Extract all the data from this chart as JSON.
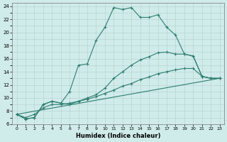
{
  "xlabel": "Humidex (Indice chaleur)",
  "xlim": [
    -0.5,
    23.5
  ],
  "ylim": [
    6,
    24.5
  ],
  "yticks": [
    6,
    8,
    10,
    12,
    14,
    16,
    18,
    20,
    22,
    24
  ],
  "xticks": [
    0,
    1,
    2,
    3,
    4,
    5,
    6,
    7,
    8,
    9,
    10,
    11,
    12,
    13,
    14,
    15,
    16,
    17,
    18,
    19,
    20,
    21,
    22,
    23
  ],
  "background_color": "#d0ecea",
  "plot_bg_color": "#d0ecea",
  "grid_color": "#b0cece",
  "line_color": "#2e7d6e",
  "line1_x": [
    0,
    1,
    2,
    3,
    4,
    5,
    6,
    7,
    8,
    9,
    10,
    11,
    12,
    13,
    14,
    15,
    16,
    17,
    18,
    19,
    20,
    21,
    22,
    23
  ],
  "line1_y": [
    7.5,
    6.8,
    7.0,
    9.0,
    9.5,
    9.2,
    11.0,
    15.0,
    15.2,
    18.8,
    20.8,
    23.8,
    23.5,
    23.8,
    22.3,
    22.3,
    22.7,
    20.8,
    19.6,
    16.7,
    16.4,
    13.3,
    13.0,
    13.0
  ],
  "line2_x": [
    0,
    1,
    2,
    3,
    4,
    5,
    6,
    7,
    8,
    9,
    10,
    11,
    12,
    13,
    14,
    15,
    16,
    17,
    18,
    19,
    20,
    21,
    22,
    23
  ],
  "line2_y": [
    7.5,
    6.8,
    7.0,
    9.0,
    9.5,
    9.2,
    9.0,
    9.5,
    10.0,
    10.5,
    11.5,
    13.0,
    14.0,
    15.0,
    15.8,
    16.3,
    16.9,
    17.0,
    16.7,
    16.7,
    16.4,
    13.3,
    13.0,
    13.0
  ],
  "line3_x": [
    0,
    1,
    2,
    3,
    4,
    5,
    6,
    7,
    8,
    9,
    10,
    11,
    12,
    13,
    14,
    15,
    16,
    17,
    18,
    19,
    20,
    21,
    22,
    23
  ],
  "line3_y": [
    7.5,
    7.0,
    7.5,
    8.5,
    9.0,
    9.0,
    9.2,
    9.5,
    9.8,
    10.2,
    10.7,
    11.2,
    11.8,
    12.2,
    12.8,
    13.2,
    13.7,
    14.0,
    14.3,
    14.5,
    14.5,
    13.3,
    13.0,
    13.0
  ],
  "line4_x": [
    0,
    23
  ],
  "line4_y": [
    7.5,
    13.0
  ]
}
